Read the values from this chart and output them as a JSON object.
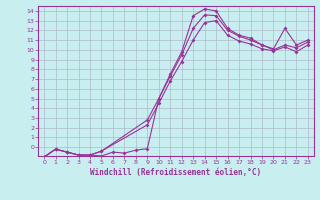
{
  "bg_color": "#c8eef0",
  "grid_color": "#b0b8cc",
  "line_color": "#993399",
  "xlabel": "Windchill (Refroidissement éolien,°C)",
  "xlim": [
    -0.5,
    23.5
  ],
  "ylim": [
    -0.9,
    14.5
  ],
  "xticks": [
    0,
    1,
    2,
    3,
    4,
    5,
    6,
    7,
    8,
    9,
    10,
    11,
    12,
    13,
    14,
    15,
    16,
    17,
    18,
    19,
    20,
    21,
    22,
    23
  ],
  "yticks": [
    -1,
    0,
    1,
    2,
    3,
    4,
    5,
    6,
    7,
    8,
    9,
    10,
    11,
    12,
    13,
    14
  ],
  "line1_x": [
    0,
    1,
    2,
    3,
    4,
    5,
    6,
    7,
    8,
    9,
    10,
    11,
    12,
    13,
    14,
    15,
    16,
    17,
    18,
    19,
    20,
    21,
    22,
    23
  ],
  "line1_y": [
    -1.0,
    -0.2,
    -0.5,
    -0.8,
    -0.8,
    -0.9,
    -0.5,
    -0.6,
    -0.3,
    -0.15,
    5.0,
    7.5,
    9.8,
    13.5,
    14.2,
    14.0,
    12.2,
    11.5,
    11.2,
    10.5,
    10.1,
    12.2,
    10.5,
    11.0
  ],
  "line2_x": [
    0,
    1,
    2,
    3,
    4,
    5,
    9,
    10,
    11,
    12,
    13,
    14,
    15,
    16,
    17,
    18,
    19,
    20,
    21,
    22,
    23
  ],
  "line2_y": [
    -1.0,
    -0.2,
    -0.5,
    -0.8,
    -0.8,
    -0.4,
    2.8,
    5.0,
    7.3,
    9.5,
    12.2,
    13.6,
    13.5,
    12.0,
    11.4,
    11.0,
    10.5,
    10.0,
    10.5,
    10.2,
    10.8
  ],
  "line3_x": [
    0,
    1,
    2,
    3,
    4,
    5,
    9,
    10,
    11,
    12,
    13,
    14,
    15,
    16,
    17,
    18,
    19,
    20,
    21,
    22,
    23
  ],
  "line3_y": [
    -1.0,
    -0.2,
    -0.5,
    -0.8,
    -0.8,
    -0.4,
    2.3,
    4.5,
    6.8,
    8.8,
    11.0,
    12.8,
    13.0,
    11.5,
    10.9,
    10.6,
    10.1,
    9.9,
    10.3,
    9.8,
    10.5
  ]
}
